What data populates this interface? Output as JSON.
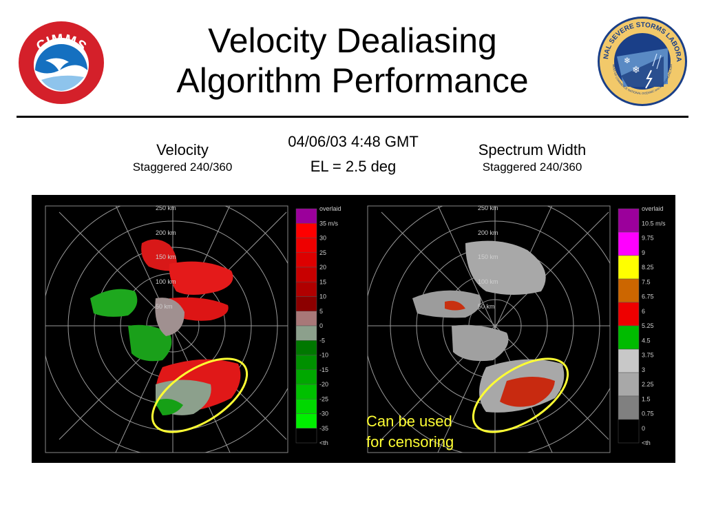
{
  "slide": {
    "title_line1": "Velocity Dealiasing",
    "title_line2": "Algorithm Performance"
  },
  "logos": {
    "left": {
      "icon": "cimms-logo",
      "text": "CIMMS"
    },
    "right": {
      "icon": "nssl-logo",
      "text_top": "NATIONAL SEVERE STORMS LABORATORY",
      "text_bottom": "U.S. DEPARTMENT OF COMMERCE NATIONAL OCEANIC and ATMOSPHERIC ADMINISTRATION"
    }
  },
  "left_panel": {
    "title": "Velocity",
    "subtitle": "Staggered 240/360"
  },
  "right_panel": {
    "title": "Spectrum Width",
    "subtitle": "Staggered 240/360"
  },
  "center": {
    "datetime": "04/06/03  4:48 GMT",
    "elevation": "EL = 2.5 deg"
  },
  "range_labels": [
    "250 km",
    "200 km",
    "150 km",
    "100 km",
    "50 km"
  ],
  "velocity_scale": {
    "labels": [
      "overlaid",
      "35 m/s",
      "30",
      "25",
      "20",
      "15",
      "10",
      "5",
      "0",
      "-5",
      "-10",
      "-15",
      "-20",
      "-25",
      "-30",
      "-35",
      "<th"
    ],
    "colors": [
      "#9b009b",
      "#ff0000",
      "#ee0000",
      "#dd0000",
      "#c80000",
      "#b00000",
      "#8c0000",
      "#a87878",
      "#8ca08c",
      "#007800",
      "#009000",
      "#00a800",
      "#00c000",
      "#00d800",
      "#00f000",
      "#000000"
    ]
  },
  "width_scale": {
    "labels": [
      "overlaid",
      "10.5 m/s",
      "9.75",
      "9",
      "8.25",
      "7.5",
      "6.75",
      "6",
      "5.25",
      "4.5",
      "3.75",
      "3",
      "2.25",
      "1.5",
      "0.75",
      "0",
      "<th"
    ],
    "colors": [
      "#9b009b",
      "#ff00ff",
      "#ffff00",
      "#cc6600",
      "#ee0000",
      "#00bb00",
      "#c8c8c8",
      "#a8a8a8",
      "#808080",
      "#000000"
    ]
  },
  "annotation": {
    "line1": "Can be used",
    "line2": "for censoring",
    "color": "#ffff33"
  }
}
